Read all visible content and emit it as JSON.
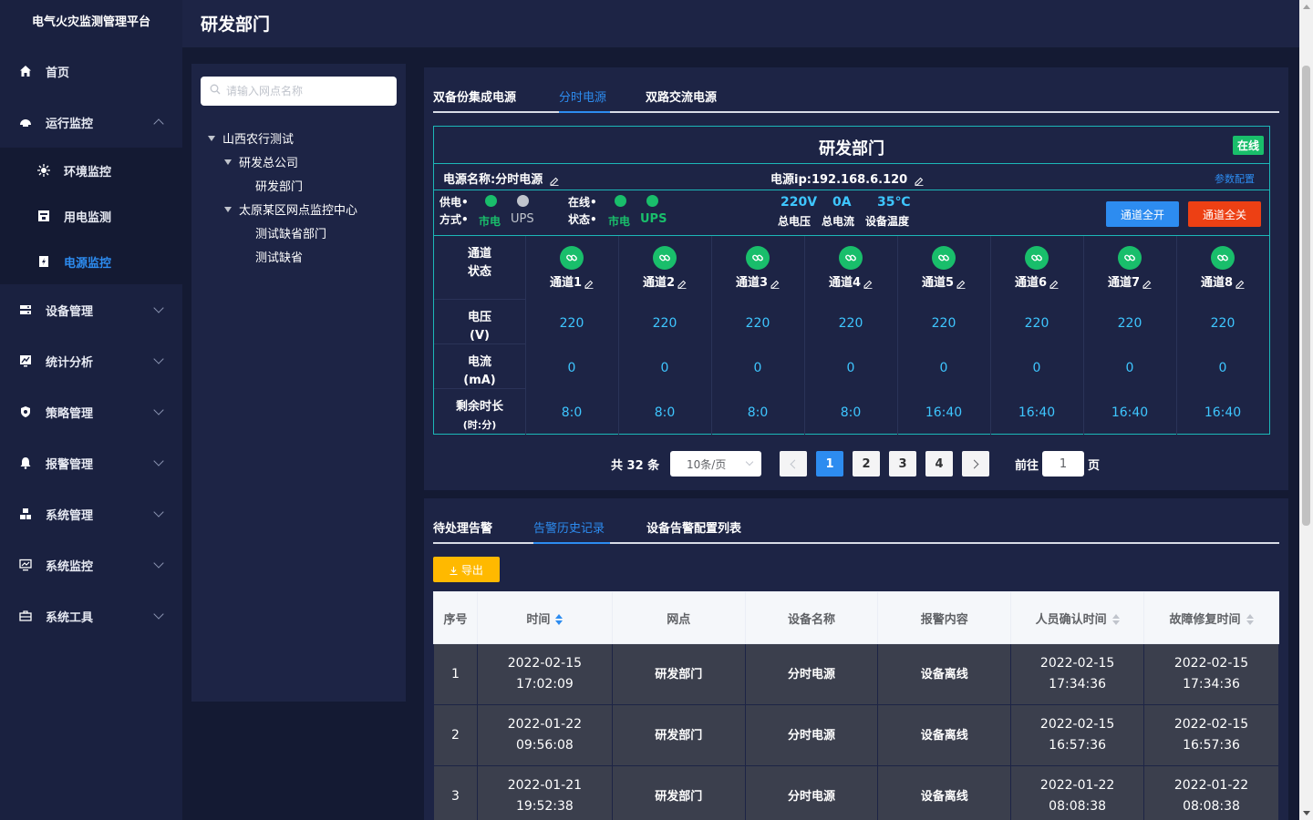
{
  "app": {
    "title": "电气火灾监测管理平台"
  },
  "sidebar": {
    "items": [
      {
        "label": "首页",
        "icon": "home-icon"
      },
      {
        "label": "运行监控",
        "icon": "monitor-icon",
        "expanded": true
      },
      {
        "label": "环境监控",
        "icon": "environment-icon"
      },
      {
        "label": "用电监测",
        "icon": "power-usage-icon"
      },
      {
        "label": "电源监控",
        "icon": "power-supply-icon",
        "active": true
      },
      {
        "label": "设备管理",
        "icon": "device-icon"
      },
      {
        "label": "统计分析",
        "icon": "chart-icon"
      },
      {
        "label": "策略管理",
        "icon": "shield-icon"
      },
      {
        "label": "报警管理",
        "icon": "alarm-bell-icon"
      },
      {
        "label": "系统管理",
        "icon": "cubes-icon"
      },
      {
        "label": "系统监控",
        "icon": "screen-icon"
      },
      {
        "label": "系统工具",
        "icon": "toolbox-icon"
      }
    ]
  },
  "header": {
    "title": "研发部门"
  },
  "tree": {
    "search_placeholder": "请输入网点名称",
    "nodes": [
      "山西农行测试",
      "研发总公司",
      "研发部门",
      "太原某区网点监控中心",
      "测试缺省部门",
      "测试缺省"
    ]
  },
  "device": {
    "tabs": [
      "双备份集成电源",
      "分时电源",
      "双路交流电源"
    ],
    "active_tab": 1,
    "title": "研发部门",
    "status_badge": "在线",
    "power_name": "电源名称:分时电源",
    "power_ip": "电源ip:192.168.6.120",
    "param_config": "参数配置",
    "supply_label_1": "供电•",
    "supply_label_2": "方式•",
    "supply_options": [
      "市电",
      "UPS"
    ],
    "online_label_1": "在线•",
    "online_label_2": "状态•",
    "online_options": [
      "市电",
      "UPS"
    ],
    "voltage_value": "220V",
    "voltage_label": "总电压",
    "current_value": "0A",
    "current_label": "总电流",
    "temp_value": "35℃",
    "temp_label": "设备温度",
    "btn_all_on": "通道全开",
    "btn_all_off": "通道全关",
    "row_labels": {
      "status_1": "通道",
      "status_2": "状态",
      "voltage_1": "电压",
      "voltage_2": "(V)",
      "current_1": "电流",
      "current_2": "(mA)",
      "remain_1": "剩余时长",
      "remain_2": "(时:分)"
    },
    "channels": [
      {
        "name": "通道1",
        "voltage": "220",
        "current": "0",
        "remain": "8:0"
      },
      {
        "name": "通道2",
        "voltage": "220",
        "current": "0",
        "remain": "8:0"
      },
      {
        "name": "通道3",
        "voltage": "220",
        "current": "0",
        "remain": "8:0"
      },
      {
        "name": "通道4",
        "voltage": "220",
        "current": "0",
        "remain": "8:0"
      },
      {
        "name": "通道5",
        "voltage": "220",
        "current": "0",
        "remain": "16:40"
      },
      {
        "name": "通道6",
        "voltage": "220",
        "current": "0",
        "remain": "16:40"
      },
      {
        "name": "通道7",
        "voltage": "220",
        "current": "0",
        "remain": "16:40"
      },
      {
        "name": "通道8",
        "voltage": "220",
        "current": "0",
        "remain": "16:40"
      }
    ]
  },
  "pager": {
    "total": "共 32 条",
    "page_size": "10条/页",
    "pages": [
      "1",
      "2",
      "3",
      "4"
    ],
    "current": "1",
    "goto_prefix": "前往",
    "goto_value": "1",
    "goto_suffix": "页"
  },
  "alarm": {
    "tabs": [
      "待处理告警",
      "告警历史记录",
      "设备告警配置列表"
    ],
    "active_tab": 1,
    "export_label": "导出",
    "columns": [
      "序号",
      "时间",
      "网点",
      "设备名称",
      "报警内容",
      "人员确认时间",
      "故障修复时间"
    ],
    "rows": [
      [
        "1",
        "2022-02-15 17:02:09",
        "研发部门",
        "分时电源",
        "设备离线",
        "2022-02-15 17:34:36",
        "2022-02-15 17:34:36"
      ],
      [
        "2",
        "2022-01-22 09:56:08",
        "研发部门",
        "分时电源",
        "设备离线",
        "2022-02-15 16:57:36",
        "2022-02-15 16:57:36"
      ],
      [
        "3",
        "2022-01-21 19:52:38",
        "研发部门",
        "分时电源",
        "设备离线",
        "2022-01-22 08:08:38",
        "2022-01-22 08:08:38"
      ]
    ]
  }
}
